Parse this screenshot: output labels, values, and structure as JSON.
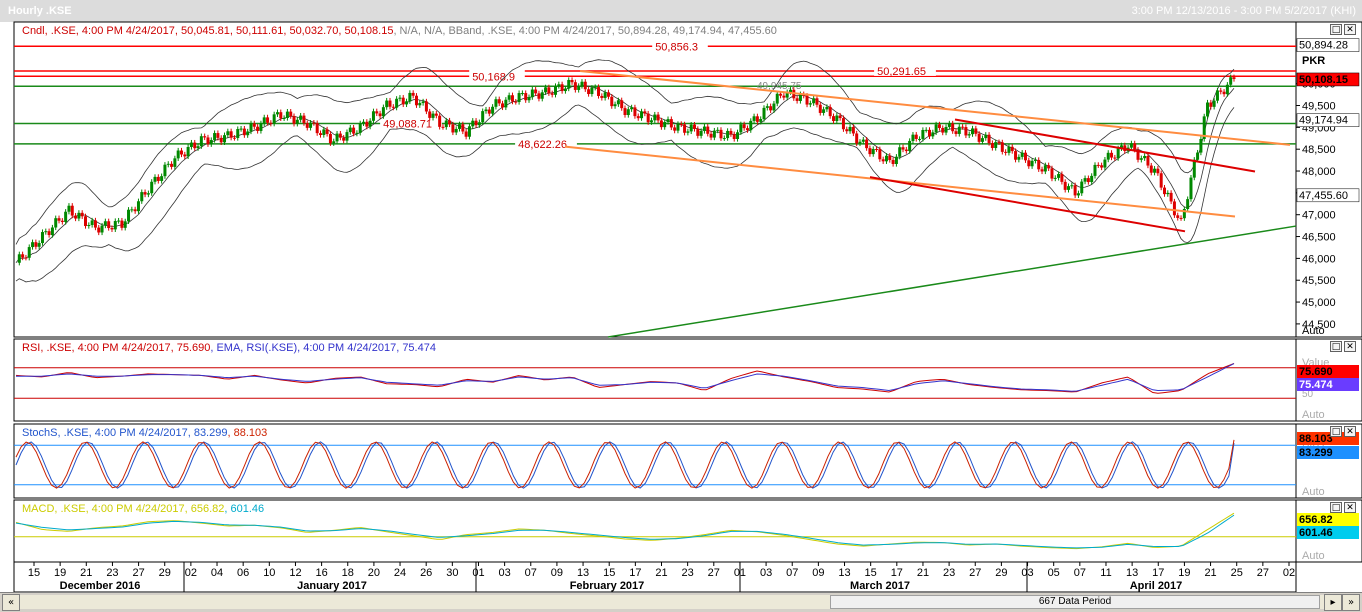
{
  "window": {
    "title": "Hourly .KSE",
    "range": "3:00 PM 12/13/2016 - 3:00 PM 5/2/2017 (KHI)"
  },
  "panels": {
    "price": {
      "header": [
        {
          "text": "Cndl, .KSE, 4:00 PM 4/24/2017, 50,045.81, 50,111.61, 50,032.70, 50,108.15",
          "color": "#cc0000"
        },
        {
          "text": ", N/A, N/A",
          "color": "#7f7f7f"
        },
        {
          "text": ", BBand, .KSE, 4:00 PM 4/24/2017, 50,894.28, 49,174.94, 47,455.60",
          "color": "#7f7f7f"
        }
      ],
      "unit": "PKR",
      "auto": "Auto",
      "axis_ticks": [
        "44,500",
        "45,000",
        "45,500",
        "46,000",
        "46,500",
        "47,000",
        "47,500",
        "48,000",
        "48,500",
        "49,000",
        "49,500",
        "50,000"
      ],
      "value_tags": [
        {
          "text": "50,894.28",
          "bg": "#ffffff",
          "fg": "#000000",
          "value": 50894.28
        },
        {
          "text": "50,108.15",
          "bg": "#ff0000",
          "fg": "#000000",
          "value": 50108.15
        },
        {
          "text": "49,174.94",
          "bg": "#ffffff",
          "fg": "#000000",
          "value": 49174.94
        },
        {
          "text": "47,455.60",
          "bg": "#ffffff",
          "fg": "#000000",
          "value": 47455.6
        }
      ],
      "hlines": [
        {
          "value": 50856.3,
          "label": "50,856.3",
          "color": "#ff0000"
        },
        {
          "value": 50291.65,
          "label": "50,291.65",
          "color": "#ff0000"
        },
        {
          "value": 50168.9,
          "label": "50,168.9",
          "color": "#ff0000"
        },
        {
          "value": 49940,
          "label": "",
          "color": "#1a8a1a"
        },
        {
          "value": 49088.71,
          "label": "49,088.71",
          "color": "#1a8a1a"
        },
        {
          "value": 48622.26,
          "label": "48,622.26",
          "color": "#1a8a1a"
        }
      ],
      "mid_label": "49,945.75"
    },
    "rsi": {
      "header": [
        {
          "text": "RSI, .KSE, 4:00 PM 4/24/2017, 75.690",
          "color": "#cc0000"
        },
        {
          "text": ", EMA, RSI(.KSE), 4:00 PM 4/24/2017, 75.474",
          "color": "#3333cc"
        }
      ],
      "unit": "Value",
      "auto": "Auto",
      "axis_ticks": [
        "50"
      ],
      "value_tags": [
        {
          "text": "75.690",
          "bg": "#ff0000",
          "fg": "#000000"
        },
        {
          "text": "75.474",
          "bg": "#6a3cff",
          "fg": "#ffffff"
        }
      ]
    },
    "stoch": {
      "header": [
        {
          "text": "StochS, .KSE, 4:00 PM 4/24/2017, 83.299",
          "color": "#2255cc"
        },
        {
          "text": ", 88.103",
          "color": "#cc2200"
        }
      ],
      "unit": "PKR",
      "auto": "Auto",
      "value_tags": [
        {
          "text": "88.103",
          "bg": "#ff3300",
          "fg": "#000000"
        },
        {
          "text": "83.299",
          "bg": "#1e90ff",
          "fg": "#000000"
        }
      ]
    },
    "macd": {
      "header": [
        {
          "text": "MACD, .KSE, 4:00 PM 4/24/2017, 656.82",
          "color": "#cccc00"
        },
        {
          "text": ", 601.46",
          "color": "#00aacc"
        }
      ],
      "unit": "PKR",
      "auto": "Auto",
      "value_tags": [
        {
          "text": "656.82",
          "bg": "#ffff00",
          "fg": "#000000"
        },
        {
          "text": "601.46",
          "bg": "#00ccee",
          "fg": "#000000"
        }
      ]
    }
  },
  "xaxis": {
    "day_ticks": [
      "15",
      "19",
      "21",
      "23",
      "27",
      "29",
      "02",
      "04",
      "06",
      "10",
      "12",
      "16",
      "18",
      "20",
      "24",
      "26",
      "30",
      "01",
      "03",
      "07",
      "09",
      "13",
      "15",
      "17",
      "21",
      "23",
      "27",
      "01",
      "03",
      "07",
      "09",
      "13",
      "15",
      "17",
      "21",
      "23",
      "27",
      "29",
      "03",
      "05",
      "07",
      "11",
      "13",
      "17",
      "19",
      "21",
      "25",
      "27",
      "02"
    ],
    "months": [
      "December 2016",
      "January 2017",
      "February 2017",
      "March 2017",
      "April 2017"
    ]
  },
  "scrollbar": {
    "label": "667 Data Period"
  },
  "chart_data": [
    {
      "type": "candlestick",
      "title": "Hourly .KSE",
      "x": [
        "Dec 15",
        "Dec 19",
        "Dec 21",
        "Dec 23",
        "Dec 27",
        "Dec 29",
        "Jan 02",
        "Jan 04",
        "Jan 06",
        "Jan 10",
        "Jan 12",
        "Jan 16",
        "Jan 18",
        "Jan 20",
        "Jan 24",
        "Jan 26",
        "Jan 30",
        "Feb 01",
        "Feb 03",
        "Feb 07",
        "Feb 09",
        "Feb 13",
        "Feb 15",
        "Feb 17",
        "Feb 21",
        "Feb 23",
        "Feb 27",
        "Mar 01",
        "Mar 03",
        "Mar 07",
        "Mar 09",
        "Mar 13",
        "Mar 15",
        "Mar 17",
        "Mar 21",
        "Mar 23",
        "Mar 27",
        "Mar 29",
        "Apr 03",
        "Apr 05",
        "Apr 07",
        "Apr 11",
        "Apr 13",
        "Apr 17",
        "Apr 19",
        "Apr 21",
        "Apr 24"
      ],
      "close": [
        45900,
        46500,
        47100,
        46700,
        46800,
        47600,
        48300,
        48700,
        48800,
        49000,
        49300,
        49100,
        48700,
        49000,
        49500,
        49700,
        49100,
        48900,
        49500,
        49700,
        49800,
        50000,
        49800,
        49400,
        49200,
        49000,
        48900,
        48800,
        49200,
        49800,
        49600,
        49200,
        48600,
        48200,
        48800,
        49000,
        48900,
        48600,
        48300,
        48000,
        47500,
        48200,
        48600,
        48000,
        46800,
        49500,
        50108.15
      ],
      "yrange": [
        44200,
        51000
      ],
      "bbands": {
        "upper": 50894.28,
        "middle": 49174.94,
        "lower": 47455.6
      },
      "hlines": [
        50856.3,
        50291.65,
        50168.9,
        49088.71,
        48622.26
      ],
      "trendlines": [
        "orange channel from January high to April",
        "red channel from March to April",
        "green rising support line from February to April"
      ]
    },
    {
      "type": "line",
      "title": "RSI",
      "series": [
        {
          "name": "RSI",
          "values": [
            60,
            58,
            64,
            57,
            59,
            62,
            61,
            60,
            55,
            60,
            54,
            50,
            56,
            58,
            49,
            48,
            45,
            55,
            51,
            60,
            54,
            58,
            44,
            48,
            52,
            50,
            40,
            56,
            66,
            58,
            52,
            44,
            42,
            38,
            52,
            55,
            48,
            44,
            41,
            40,
            38,
            50,
            58,
            36,
            40,
            62,
            75.69
          ]
        },
        {
          "name": "EMA",
          "values": [
            59,
            59,
            62,
            59,
            59,
            61,
            61,
            60,
            57,
            59,
            55,
            52,
            55,
            57,
            51,
            49,
            47,
            53,
            52,
            58,
            55,
            57,
            47,
            48,
            51,
            50,
            43,
            53,
            62,
            59,
            53,
            46,
            44,
            40,
            49,
            53,
            49,
            45,
            42,
            41,
            39,
            47,
            55,
            40,
            41,
            58,
            75.474
          ]
        }
      ],
      "ylim": [
        0,
        100
      ],
      "levels": [
        70,
        30
      ]
    },
    {
      "type": "line",
      "title": "StochS",
      "series": [
        {
          "name": "%K",
          "values": [
            83.299
          ]
        },
        {
          "name": "%D",
          "values": [
            88.103
          ]
        }
      ],
      "ylim": [
        0,
        100
      ],
      "levels": [
        80,
        20
      ]
    },
    {
      "type": "line",
      "title": "MACD",
      "series": [
        {
          "name": "MACD",
          "values": [
            400,
            200,
            150,
            250,
            300,
            420,
            450,
            380,
            300,
            320,
            250,
            120,
            180,
            260,
            140,
            30,
            -80,
            60,
            120,
            220,
            180,
            90,
            20,
            -60,
            -100,
            -40,
            60,
            180,
            140,
            40,
            -80,
            -200,
            -260,
            -200,
            -150,
            -160,
            -230,
            -200,
            -260,
            -300,
            -330,
            -280,
            -180,
            -300,
            -260,
            200,
            656.82
          ]
        },
        {
          "name": "Signal",
          "values": [
            380,
            260,
            190,
            230,
            270,
            380,
            430,
            400,
            330,
            320,
            270,
            160,
            170,
            230,
            170,
            70,
            -20,
            30,
            90,
            180,
            180,
            120,
            50,
            -20,
            -70,
            -50,
            30,
            150,
            150,
            70,
            -40,
            -160,
            -230,
            -210,
            -170,
            -160,
            -210,
            -200,
            -240,
            -280,
            -310,
            -290,
            -210,
            -270,
            -270,
            100,
            601.46
          ]
        }
      ]
    }
  ]
}
